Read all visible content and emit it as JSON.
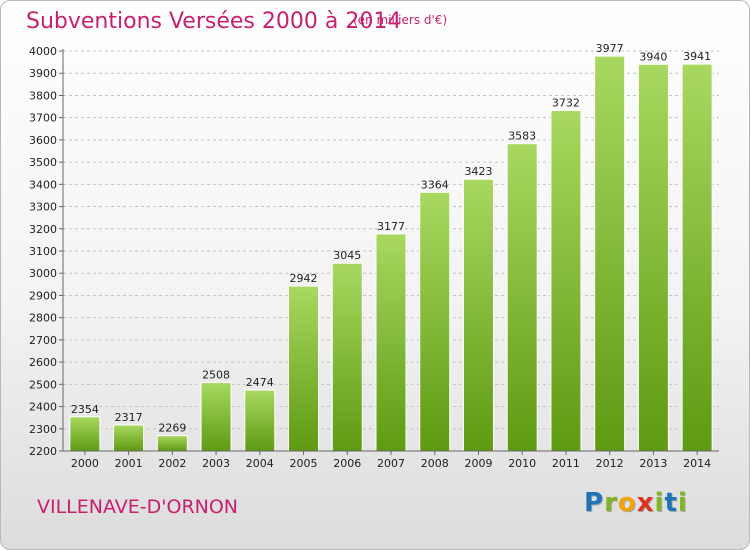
{
  "title": "Subventions Versées 2000 à 2014",
  "unit_note": "(en milliers d'€)",
  "city": "VILLENAVE-D'ORNON",
  "logo": {
    "letters": [
      "P",
      "r",
      "o",
      "x",
      "i",
      "t",
      "i"
    ],
    "colors": [
      "#1f73b7",
      "#7fb522",
      "#f0a30a",
      "#e0301e",
      "#7fb522",
      "#1f73b7",
      "#7fb522"
    ]
  },
  "colors": {
    "bar_light": "#a8d860",
    "bar_dark": "#5e9a12",
    "accent": "#c8206f"
  },
  "chart_data": {
    "type": "bar",
    "title": "Subventions Versées 2000 à 2014",
    "categories": [
      "2000",
      "2001",
      "2002",
      "2003",
      "2004",
      "2005",
      "2006",
      "2007",
      "2008",
      "2009",
      "2010",
      "2011",
      "2012",
      "2013",
      "2014"
    ],
    "values": [
      2354,
      2317,
      2269,
      2508,
      2474,
      2942,
      3045,
      3177,
      3364,
      3423,
      3583,
      3732,
      3977,
      3940,
      3941
    ],
    "ylim": [
      2200,
      4000
    ],
    "yticks": [
      2200,
      2300,
      2400,
      2500,
      2600,
      2700,
      2800,
      2900,
      3000,
      3100,
      3200,
      3300,
      3400,
      3500,
      3600,
      3700,
      3800,
      3900,
      4000
    ],
    "grid": true,
    "data_labels": true
  }
}
